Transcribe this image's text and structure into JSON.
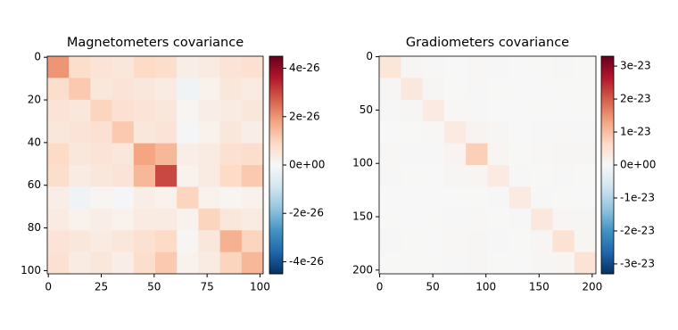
{
  "chart_data": [
    {
      "type": "heatmap",
      "title": "Magnetometers covariance",
      "xlim": [
        -0.5,
        101.5
      ],
      "ylim": [
        101.5,
        -0.5
      ],
      "xticks": [
        0,
        25,
        50,
        75,
        100
      ],
      "yticks": [
        0,
        20,
        40,
        60,
        80,
        100
      ],
      "bins": [
        -0.5,
        9.7,
        19.9,
        30.1,
        40.3,
        50.5,
        60.7,
        70.9,
        81.1,
        91.3,
        101.5
      ],
      "z": [
        [
          2e-26,
          8e-27,
          6e-27,
          5e-27,
          9e-27,
          8e-27,
          3e-27,
          4e-27,
          6e-27,
          7e-27
        ],
        [
          8e-27,
          1.2e-26,
          5e-27,
          6e-27,
          5e-27,
          4e-27,
          -2e-27,
          2e-27,
          5e-27,
          4e-27
        ],
        [
          6e-27,
          5e-27,
          1e-26,
          7e-27,
          6e-27,
          5e-27,
          1e-27,
          3e-27,
          4e-27,
          5e-27
        ],
        [
          5e-27,
          6e-27,
          7e-27,
          1.2e-26,
          5e-27,
          6e-27,
          -1e-27,
          2e-27,
          5e-27,
          3e-27
        ],
        [
          9e-27,
          5e-27,
          6e-27,
          5e-27,
          1.8e-26,
          1.5e-26,
          3e-27,
          4e-27,
          7e-27,
          8e-27
        ],
        [
          8e-27,
          4e-27,
          5e-27,
          6e-27,
          1.5e-26,
          3e-26,
          2e-27,
          4e-27,
          9e-27,
          1.2e-26
        ],
        [
          3e-27,
          -2e-27,
          1e-27,
          -1e-27,
          3e-27,
          2e-27,
          1e-26,
          2e-27,
          1e-27,
          2e-27
        ],
        [
          4e-27,
          2e-27,
          3e-27,
          2e-27,
          4e-27,
          4e-27,
          2e-27,
          1e-26,
          5e-27,
          4e-27
        ],
        [
          6e-27,
          5e-27,
          4e-27,
          5e-27,
          7e-27,
          9e-27,
          1e-27,
          5e-27,
          1.6e-26,
          1e-26
        ],
        [
          7e-27,
          4e-27,
          5e-27,
          3e-27,
          8e-27,
          1.2e-26,
          2e-27,
          4e-27,
          1e-26,
          1.5e-26
        ]
      ],
      "colorbar": {
        "lim": [
          -4.5e-26,
          4.5e-26
        ],
        "ticks": [
          {
            "value": -4e-26,
            "label": "-4e-26"
          },
          {
            "value": -2e-26,
            "label": "-2e-26"
          },
          {
            "value": 0,
            "label": "0e+00"
          },
          {
            "value": 2e-26,
            "label": "2e-26"
          },
          {
            "value": 4e-26,
            "label": "4e-26"
          }
        ]
      },
      "colormap": [
        "#053061",
        "#2166ac",
        "#4393c3",
        "#92c5de",
        "#d1e5f0",
        "#f7f7f7",
        "#fddbc7",
        "#f4a582",
        "#d6604d",
        "#b2182b",
        "#67001f"
      ]
    },
    {
      "type": "heatmap",
      "title": "Gradiometers covariance",
      "xlim": [
        -0.5,
        203.5
      ],
      "ylim": [
        203.5,
        -0.5
      ],
      "xticks": [
        0,
        50,
        100,
        150,
        200
      ],
      "yticks": [
        0,
        50,
        100,
        150,
        200
      ],
      "bins": [
        -0.5,
        19.9,
        40.3,
        60.7,
        81.1,
        101.5,
        121.9,
        142.3,
        162.7,
        183.1,
        203.5
      ],
      "z": [
        [
          4e-24,
          5e-25,
          2e-25,
          0.0,
          3e-25,
          2e-25,
          0.0,
          1e-25,
          2e-25,
          1e-25
        ],
        [
          5e-25,
          3.5e-24,
          4e-25,
          1e-25,
          2e-25,
          1e-25,
          0.0,
          0.0,
          1e-25,
          1e-25
        ],
        [
          2e-25,
          4e-25,
          3e-24,
          3e-25,
          2e-25,
          0.0,
          0.0,
          1e-25,
          0.0,
          1e-25
        ],
        [
          0.0,
          1e-25,
          3e-25,
          3e-24,
          1e-24,
          4e-25,
          0.0,
          2e-25,
          3e-25,
          2e-25
        ],
        [
          3e-25,
          2e-25,
          2e-25,
          1e-24,
          8e-24,
          8e-25,
          1e-25,
          3e-25,
          4e-25,
          5e-25
        ],
        [
          2e-25,
          1e-25,
          0.0,
          4e-25,
          8e-25,
          3e-24,
          2e-25,
          1e-25,
          2e-25,
          1e-25
        ],
        [
          0.0,
          0.0,
          0.0,
          0.0,
          1e-25,
          2e-25,
          3e-24,
          2e-25,
          1e-25,
          0.0
        ],
        [
          1e-25,
          0.0,
          1e-25,
          2e-25,
          3e-25,
          1e-25,
          2e-25,
          3.5e-24,
          6e-25,
          4e-25
        ],
        [
          2e-25,
          1e-25,
          0.0,
          3e-25,
          4e-25,
          2e-25,
          1e-25,
          6e-25,
          5e-24,
          8e-25
        ],
        [
          1e-25,
          1e-25,
          1e-25,
          2e-25,
          5e-25,
          1e-25,
          0.0,
          4e-25,
          8e-25,
          4.5e-24
        ]
      ],
      "colorbar": {
        "lim": [
          -3.3e-23,
          3.3e-23
        ],
        "ticks": [
          {
            "value": -3e-23,
            "label": "-3e-23"
          },
          {
            "value": -2e-23,
            "label": "-2e-23"
          },
          {
            "value": -1e-23,
            "label": "-1e-23"
          },
          {
            "value": 0,
            "label": "0e+00"
          },
          {
            "value": 1e-23,
            "label": "1e-23"
          },
          {
            "value": 2e-23,
            "label": "2e-23"
          },
          {
            "value": 3e-23,
            "label": "3e-23"
          }
        ]
      },
      "colormap": [
        "#053061",
        "#2166ac",
        "#4393c3",
        "#92c5de",
        "#d1e5f0",
        "#f7f7f7",
        "#fddbc7",
        "#f4a582",
        "#d6604d",
        "#b2182b",
        "#67001f"
      ]
    }
  ]
}
